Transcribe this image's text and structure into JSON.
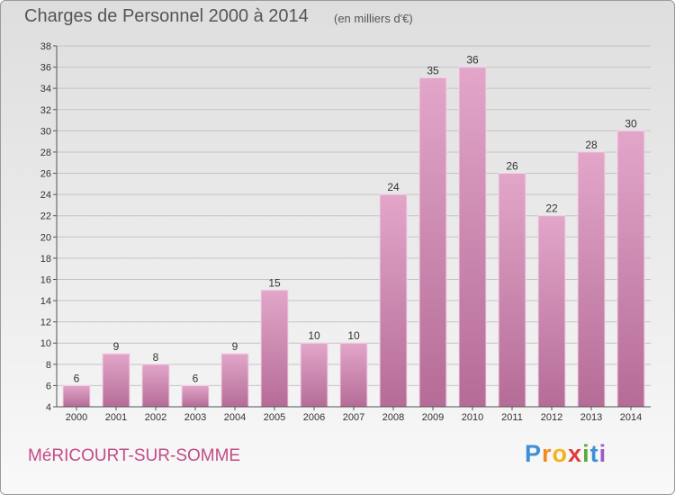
{
  "header": {
    "title": "Charges de Personnel 2000 à 2014",
    "subtitle": "(en milliers d'€)"
  },
  "footer": {
    "place": "MéRICOURT-SUR-SOMME",
    "logo_letters": [
      "P",
      "r",
      "o",
      "x",
      "i",
      "t",
      "i"
    ],
    "logo_colors": [
      "#3d8fd6",
      "#ef8a1e",
      "#f2b418",
      "#e03c3c",
      "#5aaa3a",
      "#3d8fd6",
      "#9a5cc6"
    ]
  },
  "colors": {
    "bar_top": "#e2a6c9",
    "bar_bottom": "#b56c97",
    "bar_edge": "#f3d3e6",
    "grid": "#c4c4c4",
    "axis": "#555555"
  },
  "chart_data": {
    "type": "bar",
    "categories": [
      "2000",
      "2001",
      "2002",
      "2003",
      "2004",
      "2005",
      "2006",
      "2007",
      "2008",
      "2009",
      "2010",
      "2011",
      "2012",
      "2013",
      "2014"
    ],
    "values": [
      6,
      9,
      8,
      6,
      9,
      15,
      10,
      10,
      24,
      35,
      36,
      26,
      22,
      28,
      30
    ],
    "title": "Charges de Personnel 2000 à 2014",
    "subtitle": "(en milliers d'€)",
    "xlabel": "",
    "ylabel": "",
    "ylim": [
      4,
      38
    ],
    "ytick_step": 2,
    "grid": true,
    "legend": "none"
  }
}
